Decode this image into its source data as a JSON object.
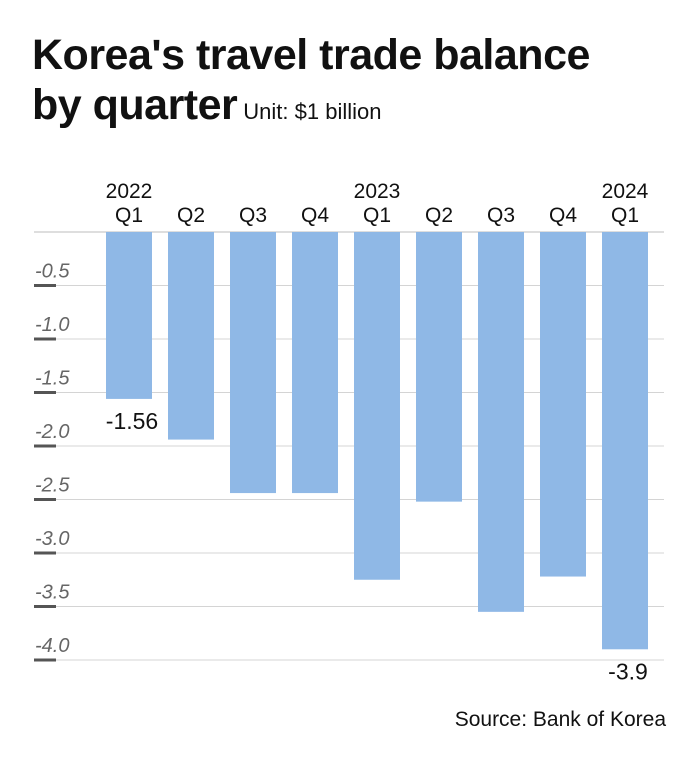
{
  "title": {
    "line1": "Korea's travel trade balance",
    "line2": "by quarter",
    "unit": "Unit: $1 billion"
  },
  "source": "Source: Bank of Korea",
  "colors": {
    "bar": "#8fb8e6",
    "grid": "#d4d4d4",
    "tick": "#555555",
    "label": "#666666"
  },
  "chart_data": {
    "type": "bar",
    "title": "Korea's travel trade balance by quarter",
    "unit": "Unit: $1 billion",
    "year_labels": [
      "2022",
      "",
      "",
      "",
      "2023",
      "",
      "",
      "",
      "2024"
    ],
    "categories": [
      "Q1",
      "Q2",
      "Q3",
      "Q4",
      "Q1",
      "Q2",
      "Q3",
      "Q4",
      "Q1"
    ],
    "values": [
      -1.56,
      -1.94,
      -2.44,
      -2.44,
      -3.25,
      -2.52,
      -3.55,
      -3.22,
      -3.9
    ],
    "data_labels": [
      "-1.56",
      "",
      "",
      "",
      "",
      "",
      "",
      "",
      "-3.9"
    ],
    "y_ticks": [
      -0.5,
      -1.0,
      -1.5,
      -2.0,
      -2.5,
      -3.0,
      -3.5,
      -4.0
    ],
    "y_tick_labels": [
      "-0.5",
      "-1.0",
      "-1.5",
      "-2.0",
      "-2.5",
      "-3.0",
      "-3.5",
      "-4.0"
    ],
    "ylim": [
      -4.0,
      0
    ],
    "grid": true,
    "legend": "none"
  }
}
